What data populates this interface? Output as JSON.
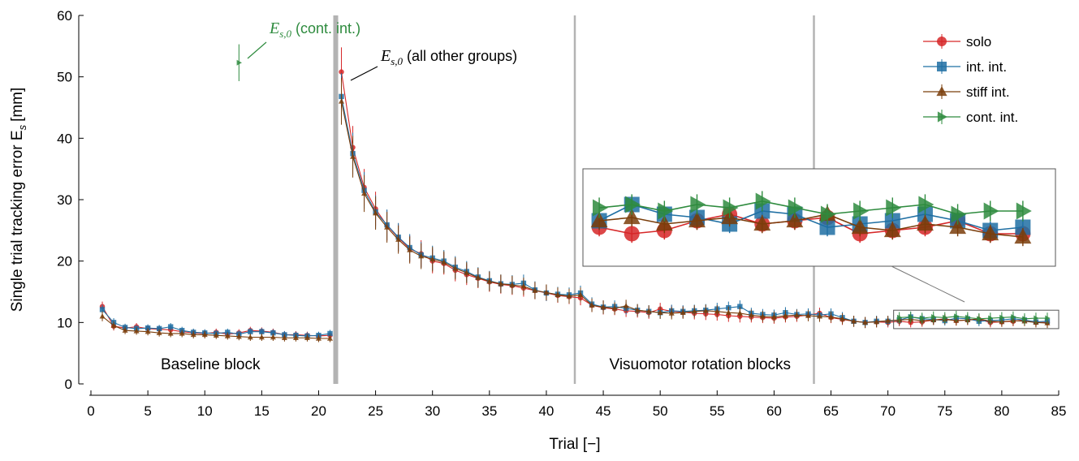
{
  "chart_data": {
    "type": "line",
    "xlabel": "Trial [−]",
    "ylabel": "Single trial tracking error E",
    "ylabel_sub": "s",
    "ylabel_unit": "[mm]",
    "xlim": [
      0,
      85
    ],
    "ylim": [
      0,
      60
    ],
    "xticks": [
      0,
      5,
      10,
      15,
      20,
      25,
      30,
      35,
      40,
      45,
      50,
      55,
      60,
      65,
      70,
      75,
      80,
      85
    ],
    "yticks": [
      0,
      10,
      20,
      30,
      40,
      50,
      60
    ],
    "block_boundaries": [
      21.5,
      42.5,
      63.5
    ],
    "block_labels": [
      {
        "text": "Baseline block",
        "x": 10.5,
        "y": 3.2
      },
      {
        "text": "Visuomotor rotation blocks",
        "x": 53.5,
        "y": 3.2
      }
    ],
    "annotations": [
      {
        "prefix": "E",
        "sub": "s,0",
        "suffix": " (cont. int.)",
        "color": "#2e8b3e"
      },
      {
        "prefix": "E",
        "sub": "s,0",
        "suffix": " (all other groups)",
        "color": "#000000"
      }
    ],
    "series": [
      {
        "name": "solo",
        "color": "#d62728",
        "marker": "circle",
        "values": [
          12.6,
          9.4,
          9.1,
          9.3,
          9.0,
          8.9,
          8.8,
          8.5,
          8.3,
          8.2,
          8.4,
          8.1,
          8.3,
          8.7,
          8.6,
          8.4,
          8.0,
          8.0,
          7.9,
          7.8,
          7.9,
          50.8,
          38.5,
          32.0,
          28.5,
          25.8,
          23.8,
          22.0,
          21.2,
          20.0,
          19.6,
          18.5,
          17.8,
          17.2,
          16.6,
          16.2,
          16.0,
          15.6,
          15.2,
          14.8,
          14.4,
          14.2,
          14.0,
          12.8,
          12.4,
          12.2,
          11.9,
          11.8,
          11.6,
          12.2,
          11.8,
          11.7,
          11.5,
          11.4,
          11.3,
          11.1,
          11.0,
          10.9,
          10.8,
          10.7,
          10.9,
          11.0,
          11.2,
          11.5,
          10.8,
          10.5,
          10.2,
          10.0,
          10.1,
          10.0,
          10.2,
          10.0,
          10.1,
          10.4,
          10.6,
          10.3,
          10.4,
          10.5,
          10.0,
          10.1,
          10.2,
          10.4,
          10.0,
          10.0
        ],
        "errors": [
          0.8,
          0.7,
          0.6,
          0.6,
          0.6,
          0.6,
          0.6,
          0.6,
          0.6,
          0.6,
          0.6,
          0.6,
          0.6,
          0.6,
          0.6,
          0.6,
          0.6,
          0.6,
          0.6,
          0.6,
          0.6,
          4.0,
          3.5,
          3.0,
          2.8,
          2.5,
          2.3,
          2.2,
          2.2,
          2.0,
          1.8,
          1.8,
          1.7,
          1.6,
          1.6,
          1.5,
          1.5,
          1.4,
          1.4,
          1.3,
          1.2,
          1.2,
          1.2,
          1.1,
          1.1,
          1.0,
          1.0,
          1.0,
          1.0,
          1.0,
          1.0,
          1.0,
          1.0,
          1.0,
          1.0,
          1.0,
          1.0,
          0.9,
          0.9,
          0.9,
          0.9,
          0.9,
          0.9,
          0.9,
          0.9,
          0.9,
          0.9,
          0.9,
          0.9,
          0.8,
          0.8,
          0.8,
          0.8,
          0.8,
          0.8,
          0.8,
          0.8,
          0.8,
          0.8,
          0.8,
          0.8,
          0.8,
          0.8,
          0.8
        ]
      },
      {
        "name": "int. int.",
        "color": "#1f6fa3",
        "marker": "square",
        "values": [
          12.1,
          10.0,
          9.2,
          9.0,
          9.1,
          9.0,
          9.3,
          8.7,
          8.4,
          8.3,
          8.2,
          8.4,
          8.1,
          8.5,
          8.5,
          8.3,
          8.0,
          7.9,
          7.8,
          7.9,
          8.2,
          46.8,
          37.5,
          31.5,
          28.0,
          25.9,
          23.9,
          22.2,
          21.0,
          20.5,
          20.0,
          19.0,
          18.3,
          17.4,
          16.8,
          16.3,
          16.2,
          16.4,
          15.3,
          14.8,
          14.6,
          14.5,
          14.8,
          13.0,
          12.5,
          12.6,
          12.3,
          12.0,
          11.8,
          11.6,
          11.9,
          11.8,
          11.9,
          12.0,
          12.2,
          12.4,
          12.6,
          11.5,
          11.3,
          11.2,
          11.6,
          11.3,
          11.4,
          11.2,
          11.4,
          10.8,
          10.2,
          10.0,
          10.2,
          10.2,
          10.4,
          10.9,
          10.6,
          10.5,
          10.3,
          10.7,
          10.6,
          10.2,
          10.3,
          10.4,
          10.6,
          10.4,
          10.1,
          10.2
        ],
        "errors": [
          0.8,
          0.7,
          0.6,
          0.6,
          0.6,
          0.6,
          0.6,
          0.6,
          0.6,
          0.6,
          0.6,
          0.6,
          0.6,
          0.6,
          0.6,
          0.6,
          0.6,
          0.6,
          0.6,
          0.6,
          0.6,
          3.8,
          3.4,
          3.0,
          2.7,
          2.5,
          2.3,
          2.2,
          2.1,
          2.0,
          1.8,
          1.8,
          1.7,
          1.6,
          1.6,
          1.5,
          1.5,
          1.4,
          1.4,
          1.3,
          1.2,
          1.2,
          1.2,
          1.1,
          1.1,
          1.0,
          1.0,
          1.0,
          1.0,
          1.0,
          1.0,
          1.0,
          1.0,
          1.0,
          1.0,
          1.0,
          1.0,
          0.9,
          0.9,
          0.9,
          0.9,
          0.9,
          0.9,
          0.9,
          0.9,
          0.9,
          0.9,
          0.9,
          0.9,
          0.8,
          0.8,
          0.8,
          0.8,
          0.8,
          0.8,
          0.8,
          0.8,
          0.8,
          0.8,
          0.8,
          0.8,
          0.8,
          0.8,
          0.8
        ]
      },
      {
        "name": "stiff int.",
        "color": "#7a3d0a",
        "marker": "triangle",
        "values": [
          11.0,
          9.5,
          8.7,
          8.6,
          8.5,
          8.3,
          8.2,
          8.2,
          8.0,
          8.0,
          7.9,
          7.8,
          7.7,
          7.6,
          7.6,
          7.6,
          7.5,
          7.5,
          7.5,
          7.4,
          7.4,
          46.0,
          37.0,
          31.0,
          27.8,
          25.5,
          23.5,
          21.8,
          20.8,
          20.3,
          19.8,
          18.8,
          18.1,
          17.3,
          16.7,
          16.3,
          16.1,
          15.9,
          15.2,
          14.9,
          14.5,
          14.3,
          14.5,
          12.8,
          12.5,
          12.3,
          12.7,
          12.0,
          11.8,
          11.6,
          11.5,
          11.6,
          11.8,
          11.9,
          11.8,
          11.6,
          11.5,
          11.2,
          11.0,
          10.9,
          11.1,
          11.2,
          11.1,
          11.0,
          10.9,
          10.6,
          10.2,
          10.0,
          10.1,
          10.3,
          10.4,
          10.5,
          10.3,
          10.4,
          10.5,
          10.3,
          10.4,
          10.6,
          10.2,
          10.1,
          10.3,
          10.2,
          10.0,
          9.9
        ],
        "errors": [
          0.8,
          0.7,
          0.6,
          0.6,
          0.6,
          0.6,
          0.6,
          0.6,
          0.6,
          0.6,
          0.6,
          0.6,
          0.6,
          0.6,
          0.6,
          0.6,
          0.6,
          0.6,
          0.6,
          0.6,
          0.6,
          3.8,
          3.4,
          3.0,
          2.7,
          2.5,
          2.3,
          2.2,
          2.1,
          2.0,
          1.8,
          1.8,
          1.7,
          1.6,
          1.6,
          1.5,
          1.5,
          1.4,
          1.4,
          1.3,
          1.2,
          1.2,
          1.2,
          1.1,
          1.1,
          1.0,
          1.0,
          1.0,
          1.0,
          1.0,
          1.0,
          1.0,
          1.0,
          1.0,
          1.0,
          1.0,
          1.0,
          0.9,
          0.9,
          0.9,
          0.9,
          0.9,
          0.9,
          0.9,
          0.9,
          0.9,
          0.9,
          0.9,
          0.9,
          0.8,
          0.8,
          0.8,
          0.8,
          0.8,
          0.8,
          0.8,
          0.8,
          0.8,
          0.8,
          0.8,
          0.8,
          0.8,
          0.8,
          0.8
        ]
      },
      {
        "name": "cont. int.",
        "color": "#2e8b3e",
        "marker": "triangle-right",
        "values": [
          null,
          null,
          null,
          null,
          null,
          null,
          null,
          null,
          null,
          null,
          null,
          null,
          52.3,
          null,
          null,
          null,
          null,
          null,
          null,
          null,
          null,
          null,
          null,
          null,
          null,
          null,
          null,
          null,
          null,
          null,
          null,
          null,
          null,
          null,
          null,
          null,
          null,
          null,
          null,
          null,
          null,
          null,
          null,
          null,
          null,
          null,
          null,
          null,
          null,
          null,
          null,
          null,
          null,
          null,
          null,
          null,
          null,
          null,
          null,
          null,
          null,
          null,
          null,
          null,
          null,
          null,
          null,
          null,
          null,
          null,
          10.8,
          10.9,
          10.7,
          10.9,
          10.8,
          11.0,
          10.8,
          10.6,
          10.7,
          10.8,
          10.9,
          10.6,
          10.7,
          10.7
        ],
        "errors": [
          null,
          null,
          null,
          null,
          null,
          null,
          null,
          null,
          null,
          null,
          null,
          null,
          3.0,
          null,
          null,
          null,
          null,
          null,
          null,
          null,
          null,
          null,
          null,
          null,
          null,
          null,
          null,
          null,
          null,
          null,
          null,
          null,
          null,
          null,
          null,
          null,
          null,
          null,
          null,
          null,
          null,
          null,
          null,
          null,
          null,
          null,
          null,
          null,
          null,
          null,
          null,
          null,
          null,
          null,
          null,
          null,
          null,
          null,
          null,
          null,
          null,
          null,
          null,
          null,
          null,
          null,
          null,
          null,
          null,
          null,
          0.9,
          0.9,
          0.9,
          0.9,
          0.9,
          0.9,
          0.9,
          0.9,
          0.9,
          0.9,
          0.9,
          0.9,
          0.9,
          0.9
        ]
      }
    ],
    "legend": {
      "placement": "top-right"
    },
    "inset": {
      "x_range": [
        70.5,
        85
      ],
      "y_range": [
        9.0,
        12.0
      ]
    }
  }
}
